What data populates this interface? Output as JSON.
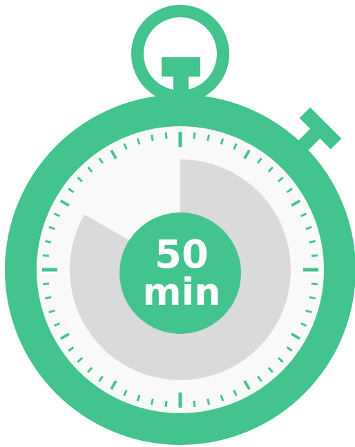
{
  "timer": {
    "value": "50",
    "unit": "min",
    "minutes": 50,
    "total_minutes": 60
  },
  "colors": {
    "body": "#43c38e",
    "face": "#f9f9f9",
    "progress": "#dadada",
    "text": "#ffffff"
  },
  "icons": {
    "main": "stopwatch-icon"
  }
}
